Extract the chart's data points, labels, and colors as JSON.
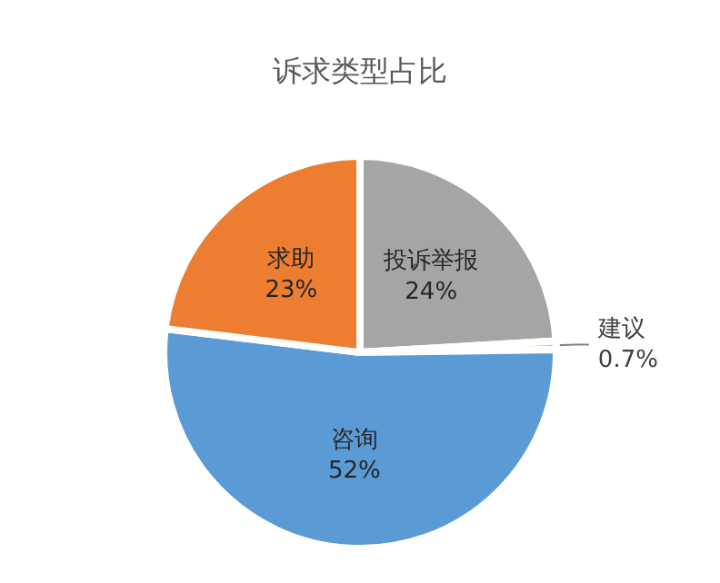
{
  "chart_data": {
    "type": "pie",
    "title": "诉求类型占比",
    "categories": [
      "投诉举报",
      "建议",
      "咨询",
      "求助"
    ],
    "values": [
      24,
      0.7,
      52,
      23
    ],
    "value_labels": [
      "24%",
      "0.7%",
      "52%",
      "23%"
    ],
    "colors": [
      "#a5a5a5",
      "#ffc000",
      "#5b9bd5",
      "#ed7d31"
    ],
    "legend": false
  }
}
